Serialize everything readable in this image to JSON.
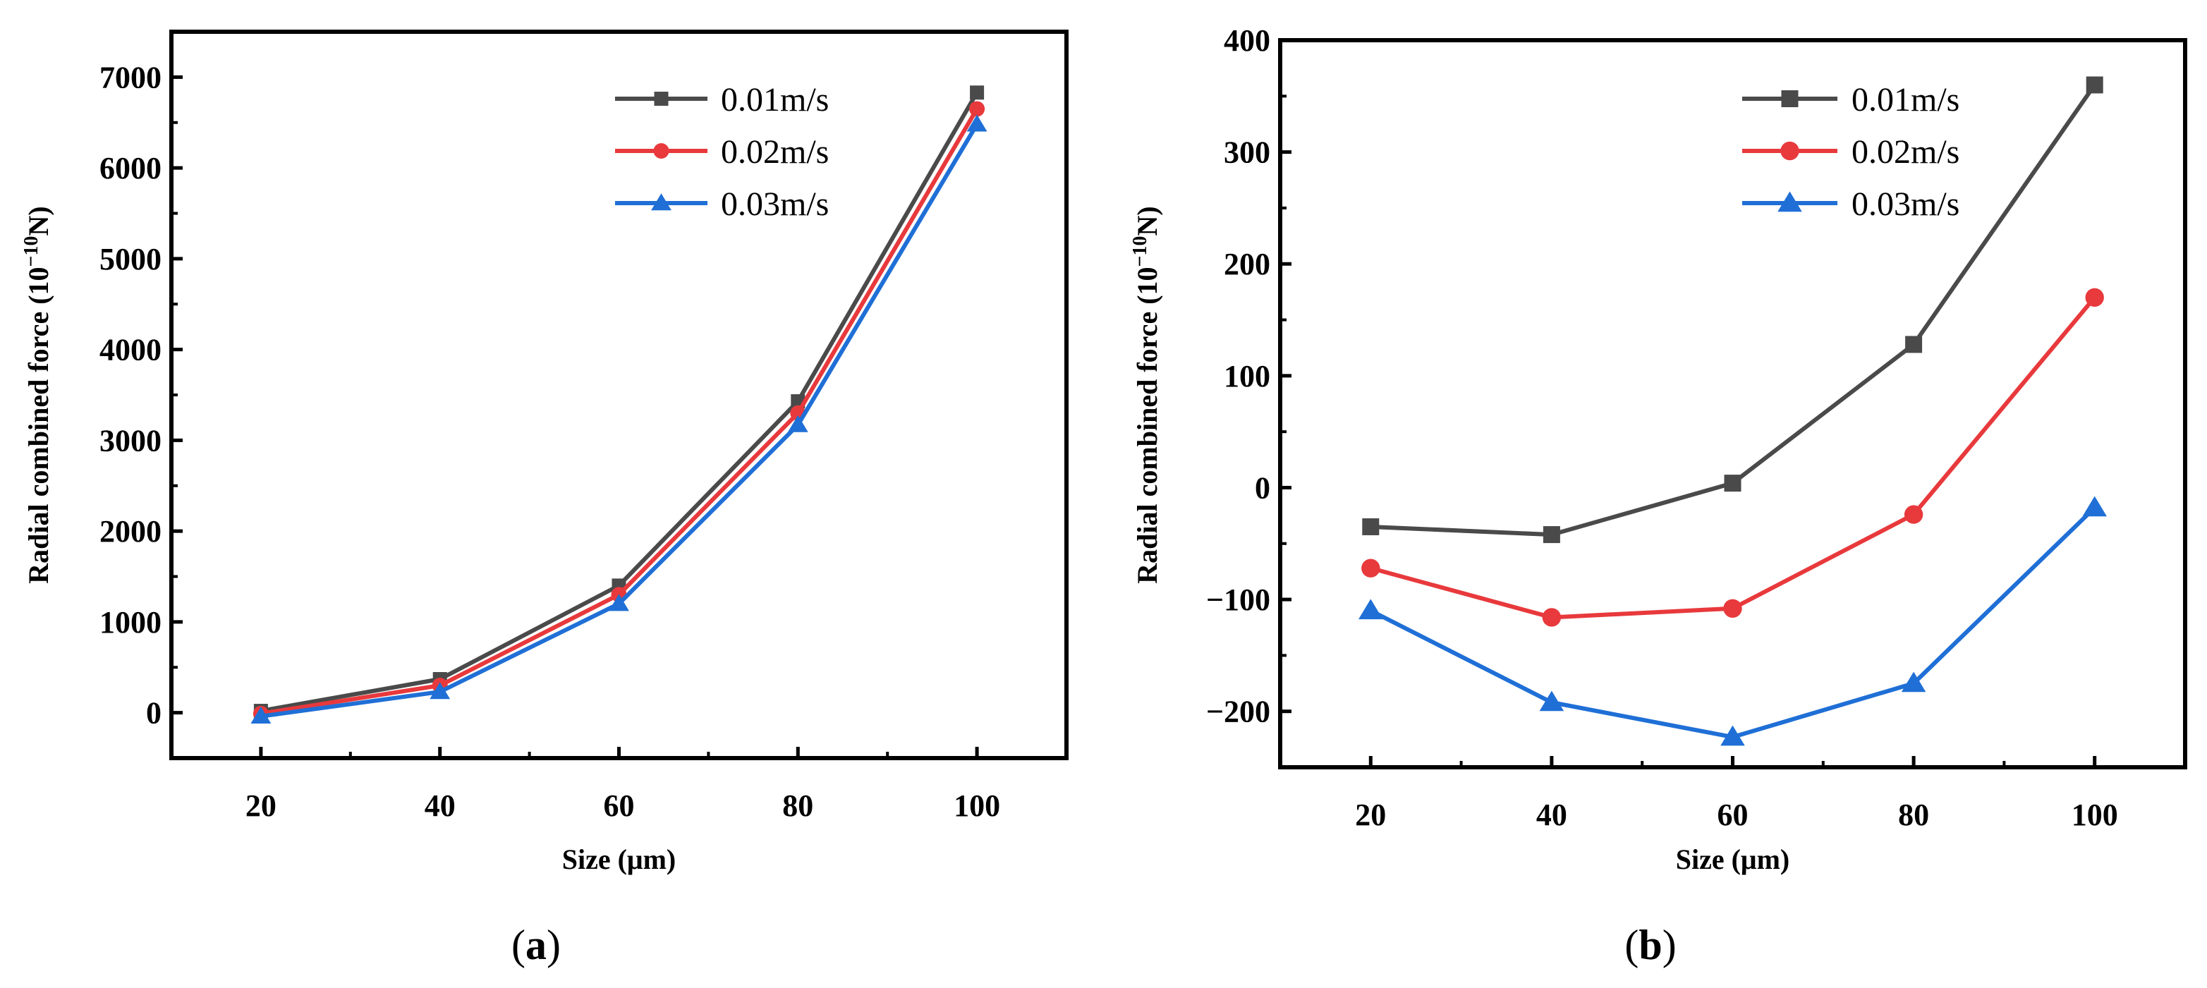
{
  "chart_data": [
    {
      "panel": "(a)",
      "caption_letter": "a",
      "type": "line",
      "xlabel": "Size (μm)",
      "ylabel_prefix": "Radial combined force  (10",
      "ylabel_exp": "−10",
      "ylabel_suffix": "N)",
      "xlim": [
        10,
        110
      ],
      "ylim": [
        -500,
        7500
      ],
      "xticks": [
        20,
        40,
        60,
        80,
        100
      ],
      "yticks": [
        0,
        1000,
        2000,
        3000,
        4000,
        5000,
        6000,
        7000
      ],
      "x": [
        20,
        40,
        60,
        80,
        100
      ],
      "legend_position": "top-center",
      "series": [
        {
          "name": "0.01m/s",
          "marker": "square",
          "color": "#4a4a4a",
          "values": [
            20,
            370,
            1400,
            3430,
            6830
          ]
        },
        {
          "name": "0.02m/s",
          "marker": "circle",
          "color": "#e8393c",
          "values": [
            -10,
            300,
            1300,
            3300,
            6650
          ]
        },
        {
          "name": "0.03m/s",
          "marker": "triangle",
          "color": "#1f6fd6",
          "values": [
            -40,
            230,
            1200,
            3170,
            6480
          ]
        }
      ]
    },
    {
      "panel": "(b)",
      "caption_letter": "b",
      "type": "line",
      "xlabel": "Size (μm)",
      "ylabel_prefix": "Radial combined force  (10",
      "ylabel_exp": "−10",
      "ylabel_suffix": "N)",
      "xlim": [
        10,
        110
      ],
      "ylim": [
        -250,
        400
      ],
      "xticks": [
        20,
        40,
        60,
        80,
        100
      ],
      "yticks": [
        -200,
        -100,
        0,
        100,
        200,
        300,
        400
      ],
      "x": [
        20,
        40,
        60,
        80,
        100
      ],
      "legend_position": "top-right",
      "series": [
        {
          "name": "0.01m/s",
          "marker": "square",
          "color": "#4a4a4a",
          "values": [
            -35,
            -42,
            4,
            128,
            360
          ]
        },
        {
          "name": "0.02m/s",
          "marker": "circle",
          "color": "#e8393c",
          "values": [
            -72,
            -116,
            -108,
            -24,
            170
          ]
        },
        {
          "name": "0.03m/s",
          "marker": "triangle",
          "color": "#1f6fd6",
          "values": [
            -110,
            -192,
            -223,
            -175,
            -18
          ]
        }
      ]
    }
  ]
}
